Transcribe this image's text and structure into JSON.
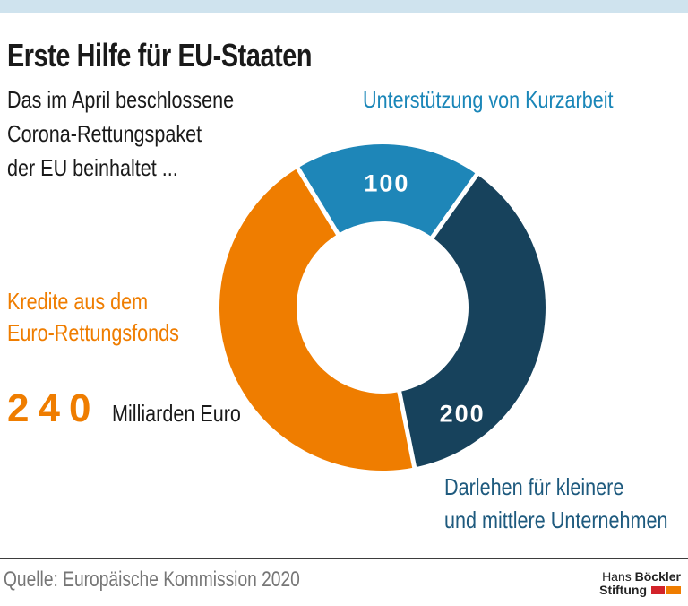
{
  "header": {
    "title": "Erste Hilfe für EU-Staaten",
    "subtitle_lines": [
      "Das im April beschlossene",
      "Corona-Rettungspaket",
      "der EU beinhaltet ..."
    ]
  },
  "chart_data": {
    "type": "pie",
    "donut": true,
    "title": "Erste Hilfe für EU-Staaten",
    "unit": "Milliarden Euro",
    "total": 540,
    "start_angle_deg": -31.3,
    "inner_radius_ratio": 0.53,
    "slices": [
      {
        "label": "Unterstützung von Kurzarbeit",
        "value": 100,
        "color": "#1e86b8",
        "value_shown_in_slice": true
      },
      {
        "label": "Darlehen für kleinere und mittlere Unternehmen",
        "value": 200,
        "color": "#17425c",
        "value_shown_in_slice": true
      },
      {
        "label": "Kredite aus dem Euro-Rettungsfonds",
        "value": 240,
        "color": "#ef7d00",
        "value_shown_in_slice": false
      }
    ]
  },
  "labels": {
    "kurzarbeit": "Unterstützung von Kurzarbeit",
    "kredite_line1": "Kredite aus dem",
    "kredite_line2": "Euro-Rettungsfonds",
    "kredite_value": "240",
    "kredite_unit": "Milliarden Euro",
    "darlehen_line1": "Darlehen für kleinere",
    "darlehen_line2": "und mittlere Unternehmen"
  },
  "footer": {
    "source": "Quelle: Europäische Kommission 2020",
    "logo": {
      "name_regular": "Hans",
      "name_bold": "Böckler",
      "line2_bold": "Stiftung",
      "red": "#d2232a",
      "orange": "#ef7d00"
    }
  },
  "colors": {
    "top_bar": "#cfe3ee",
    "teal": "#1e86b8",
    "dark_blue": "#17425c",
    "orange": "#ef7d00",
    "source_gray": "#767676",
    "divider": "#3d3d3d"
  }
}
